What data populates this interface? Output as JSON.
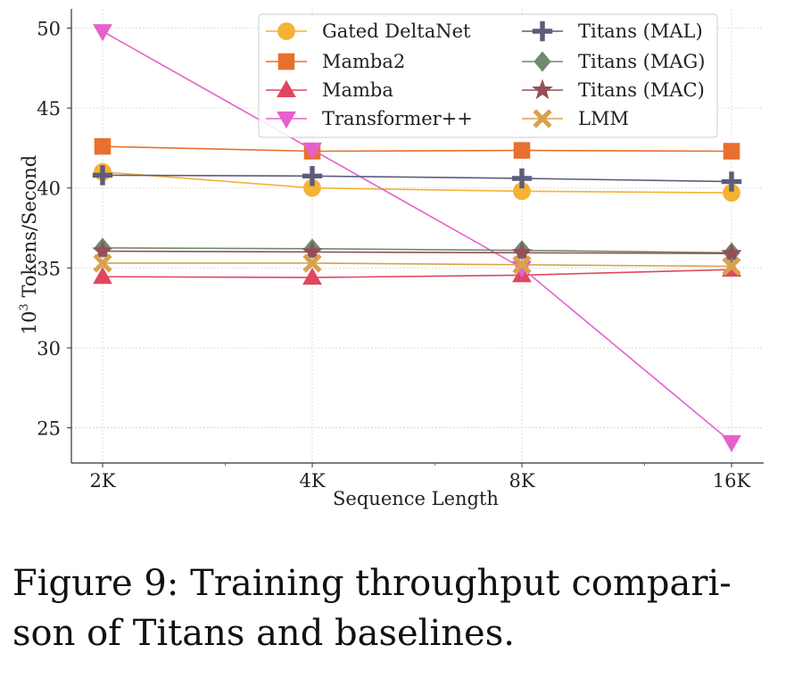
{
  "chart_data": {
    "type": "line",
    "title": "",
    "xlabel": "Sequence Length",
    "ylabel_prefix": "10",
    "ylabel_exp": "3",
    "ylabel_suffix": " Tokens/Second",
    "ylabel": "10^3 Tokens/Second",
    "x_scale": "log2",
    "categories": [
      "2K",
      "4K",
      "8K",
      "16K"
    ],
    "ylim": [
      22.8,
      51.2
    ],
    "yticks": [
      25,
      30,
      35,
      40,
      45,
      50
    ],
    "grid": true,
    "legend_position": "top-right",
    "series": [
      {
        "name": "Gated DeltaNet",
        "color": "#f5b233",
        "marker": "circle",
        "values": [
          41.0,
          40.0,
          39.8,
          39.7
        ]
      },
      {
        "name": "Mamba2",
        "color": "#e8702e",
        "marker": "square",
        "values": [
          42.6,
          42.3,
          42.35,
          42.3
        ]
      },
      {
        "name": "Mamba",
        "color": "#e0475f",
        "marker": "triangle-up",
        "values": [
          34.45,
          34.4,
          34.55,
          34.9
        ]
      },
      {
        "name": "Transformer++",
        "color": "#e75fcb",
        "marker": "triangle-down",
        "values": [
          49.8,
          42.4,
          35.0,
          24.1
        ]
      },
      {
        "name": "Titans (MAL)",
        "color": "#5d5c7c",
        "marker": "plus",
        "values": [
          40.8,
          40.75,
          40.6,
          40.4
        ]
      },
      {
        "name": "Titans (MAG)",
        "color": "#6f8a6c",
        "marker": "diamond",
        "values": [
          36.25,
          36.2,
          36.1,
          35.95
        ]
      },
      {
        "name": "Titans (MAC)",
        "color": "#935058",
        "marker": "star",
        "values": [
          36.05,
          36.0,
          35.95,
          35.9
        ]
      },
      {
        "name": "LMM",
        "color": "#d8a24e",
        "marker": "x",
        "values": [
          35.3,
          35.3,
          35.2,
          35.1
        ]
      }
    ]
  },
  "caption": {
    "line1": "Figure 9: Training throughput compari-",
    "line2": "son of Titans and baselines."
  }
}
